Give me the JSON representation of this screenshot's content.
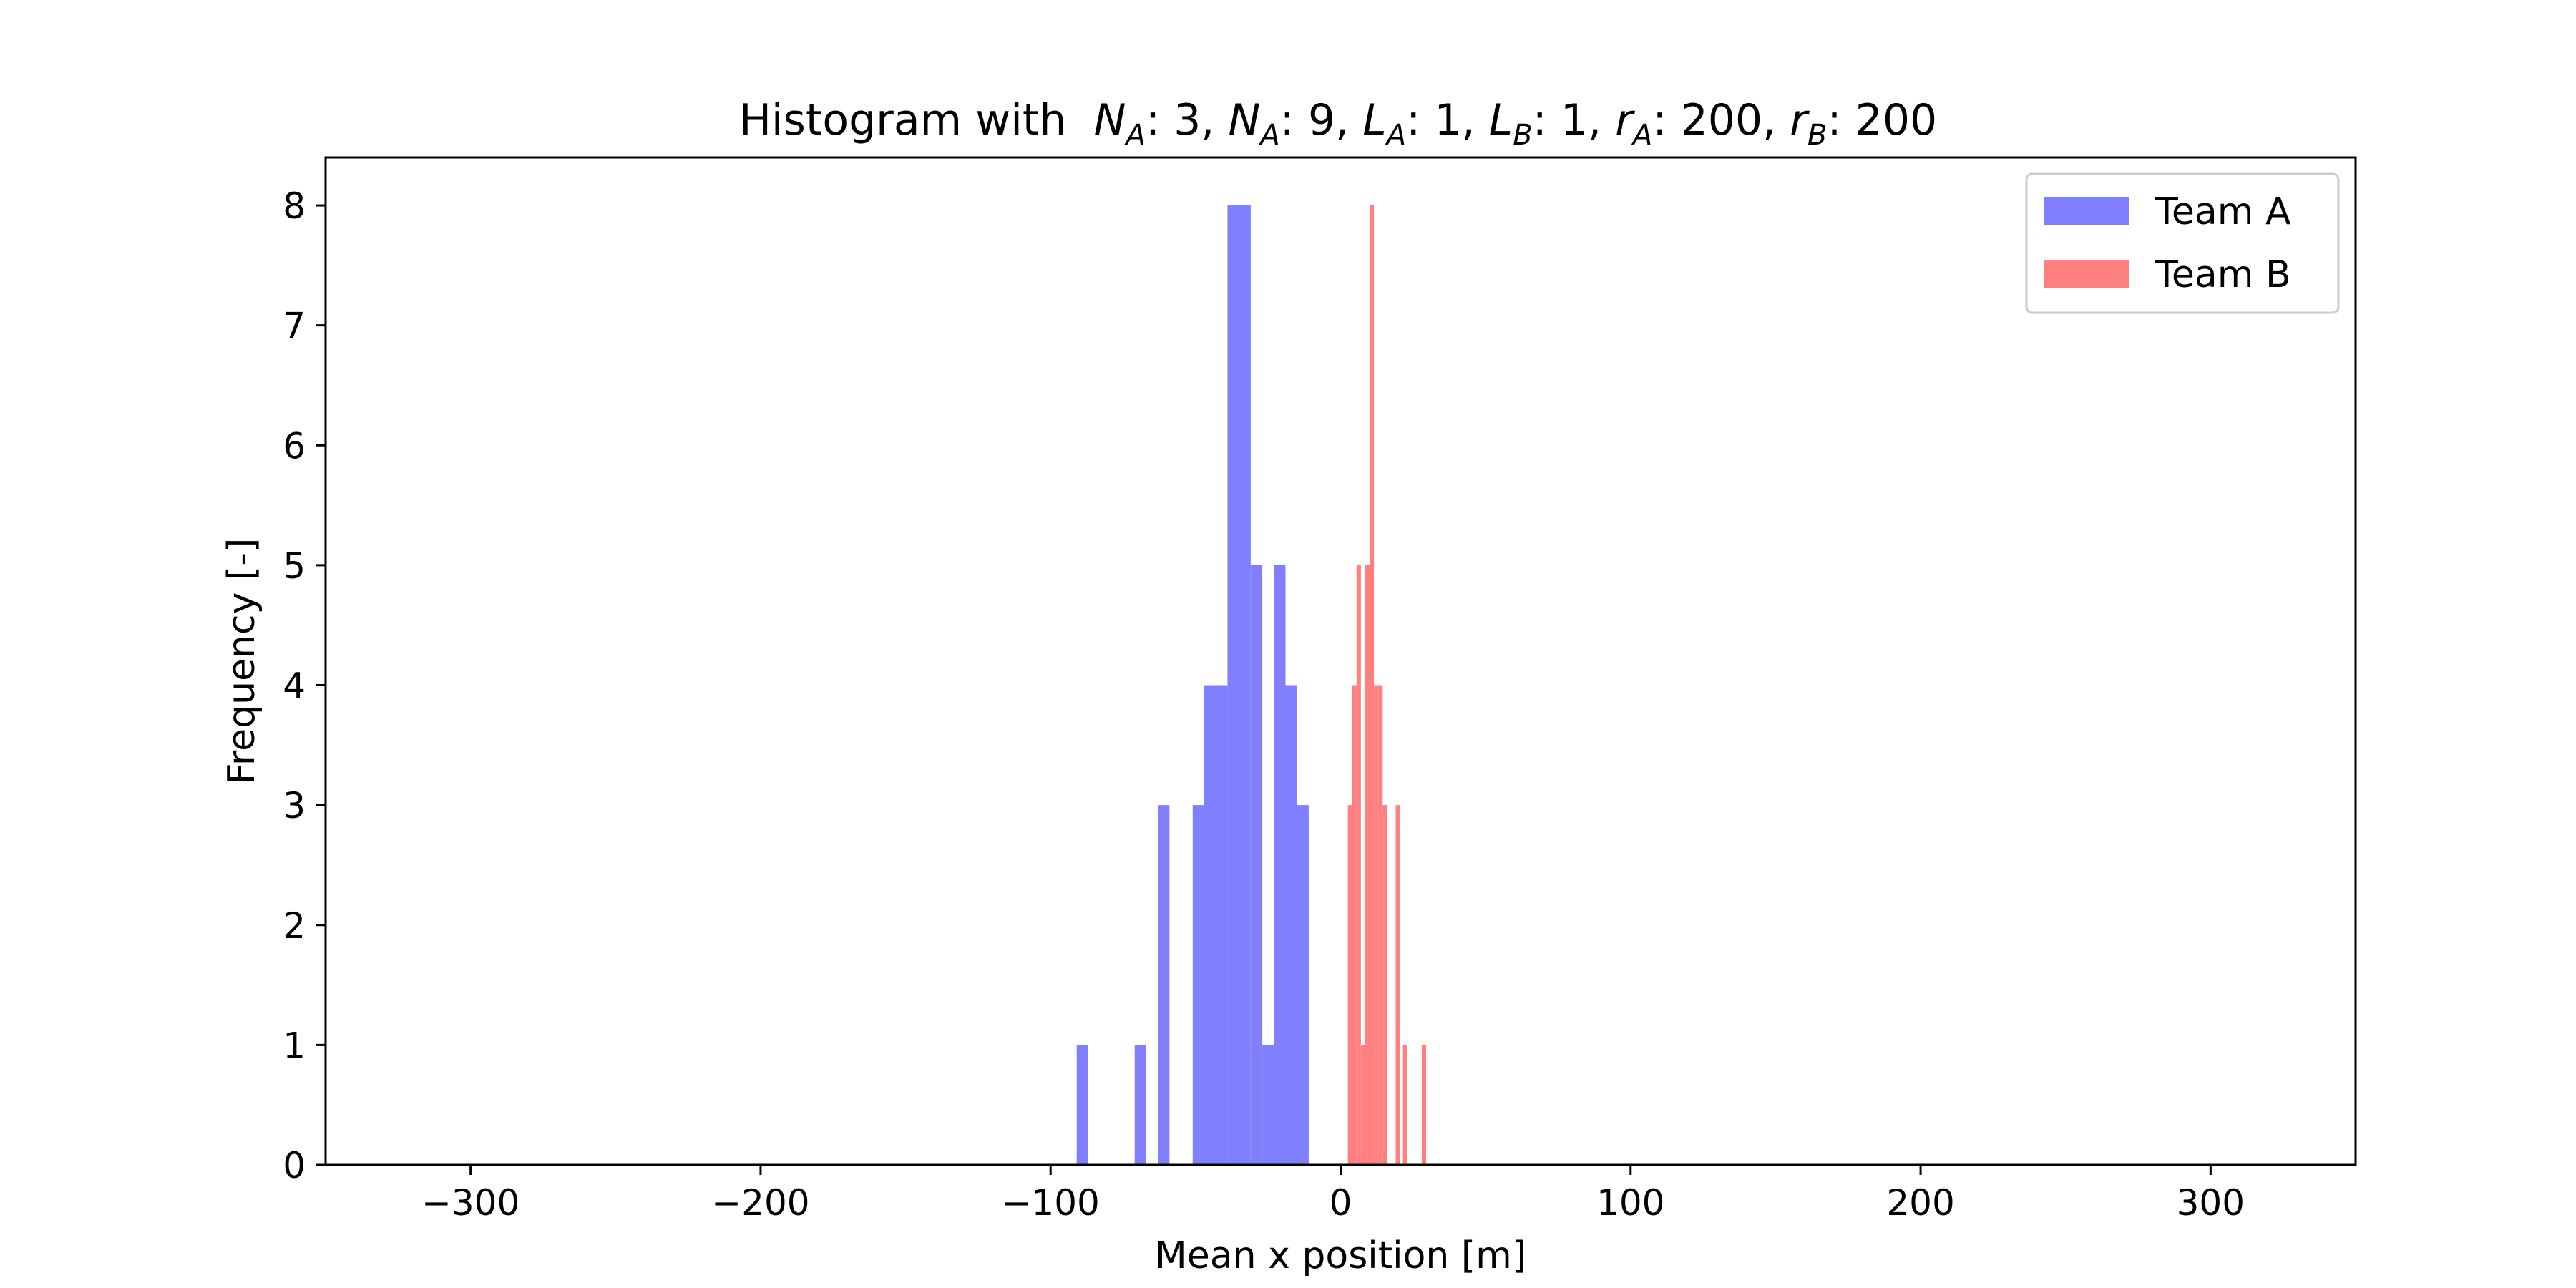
{
  "chart_data": {
    "type": "bar",
    "title_prefix": "Histogram with ",
    "title_math": [
      {
        "sym": "N",
        "sub": "A",
        "rest": ": 3, "
      },
      {
        "sym": "N",
        "sub": "A",
        "rest": ": 9, "
      },
      {
        "sym": "L",
        "sub": "A",
        "rest": ": 1, "
      },
      {
        "sym": "L",
        "sub": "B",
        "rest": ": 1, "
      },
      {
        "sym": "r",
        "sub": "A",
        "rest": ": 200, "
      },
      {
        "sym": "r",
        "sub": "B",
        "rest": ": 200"
      }
    ],
    "xlabel": "Mean x position [m]",
    "ylabel": "Frequency [-]",
    "xlim": [
      -350,
      350
    ],
    "ylim": [
      0,
      8.4
    ],
    "xticks": [
      -300,
      -200,
      -100,
      0,
      100,
      200,
      300
    ],
    "xtick_labels": [
      "−300",
      "−200",
      "−100",
      "0",
      "100",
      "200",
      "300"
    ],
    "yticks": [
      0,
      1,
      2,
      3,
      4,
      5,
      6,
      7,
      8
    ],
    "ytick_labels": [
      "0",
      "1",
      "2",
      "3",
      "4",
      "5",
      "6",
      "7",
      "8"
    ],
    "grid": false,
    "legend_position": "top-right",
    "series": [
      {
        "name": "Team A",
        "color": "#8080ff",
        "bins": [
          {
            "x0": -91,
            "x1": -87,
            "count": 1
          },
          {
            "x0": -71,
            "x1": -67,
            "count": 1
          },
          {
            "x0": -63,
            "x1": -59,
            "count": 3
          },
          {
            "x0": -51,
            "x1": -47,
            "count": 3
          },
          {
            "x0": -47,
            "x1": -43,
            "count": 4
          },
          {
            "x0": -43,
            "x1": -39,
            "count": 4
          },
          {
            "x0": -39,
            "x1": -35,
            "count": 8
          },
          {
            "x0": -35,
            "x1": -31,
            "count": 8
          },
          {
            "x0": -31,
            "x1": -27,
            "count": 5
          },
          {
            "x0": -27,
            "x1": -23,
            "count": 1
          },
          {
            "x0": -23,
            "x1": -19,
            "count": 5
          },
          {
            "x0": -19,
            "x1": -15,
            "count": 4
          },
          {
            "x0": -15,
            "x1": -11,
            "count": 3
          }
        ]
      },
      {
        "name": "Team B",
        "color": "#ff8080",
        "bins": [
          {
            "x0": 2.5,
            "x1": 4.0,
            "count": 3
          },
          {
            "x0": 4.0,
            "x1": 5.5,
            "count": 4
          },
          {
            "x0": 5.5,
            "x1": 7.0,
            "count": 5
          },
          {
            "x0": 7.0,
            "x1": 8.5,
            "count": 1
          },
          {
            "x0": 8.5,
            "x1": 10.0,
            "count": 5
          },
          {
            "x0": 10.0,
            "x1": 11.5,
            "count": 8
          },
          {
            "x0": 11.5,
            "x1": 13.0,
            "count": 4
          },
          {
            "x0": 13.0,
            "x1": 14.5,
            "count": 4
          },
          {
            "x0": 14.5,
            "x1": 16.0,
            "count": 3
          },
          {
            "x0": 19.0,
            "x1": 20.5,
            "count": 3
          },
          {
            "x0": 21.5,
            "x1": 23.0,
            "count": 1
          },
          {
            "x0": 28.0,
            "x1": 29.5,
            "count": 1
          }
        ]
      }
    ]
  }
}
